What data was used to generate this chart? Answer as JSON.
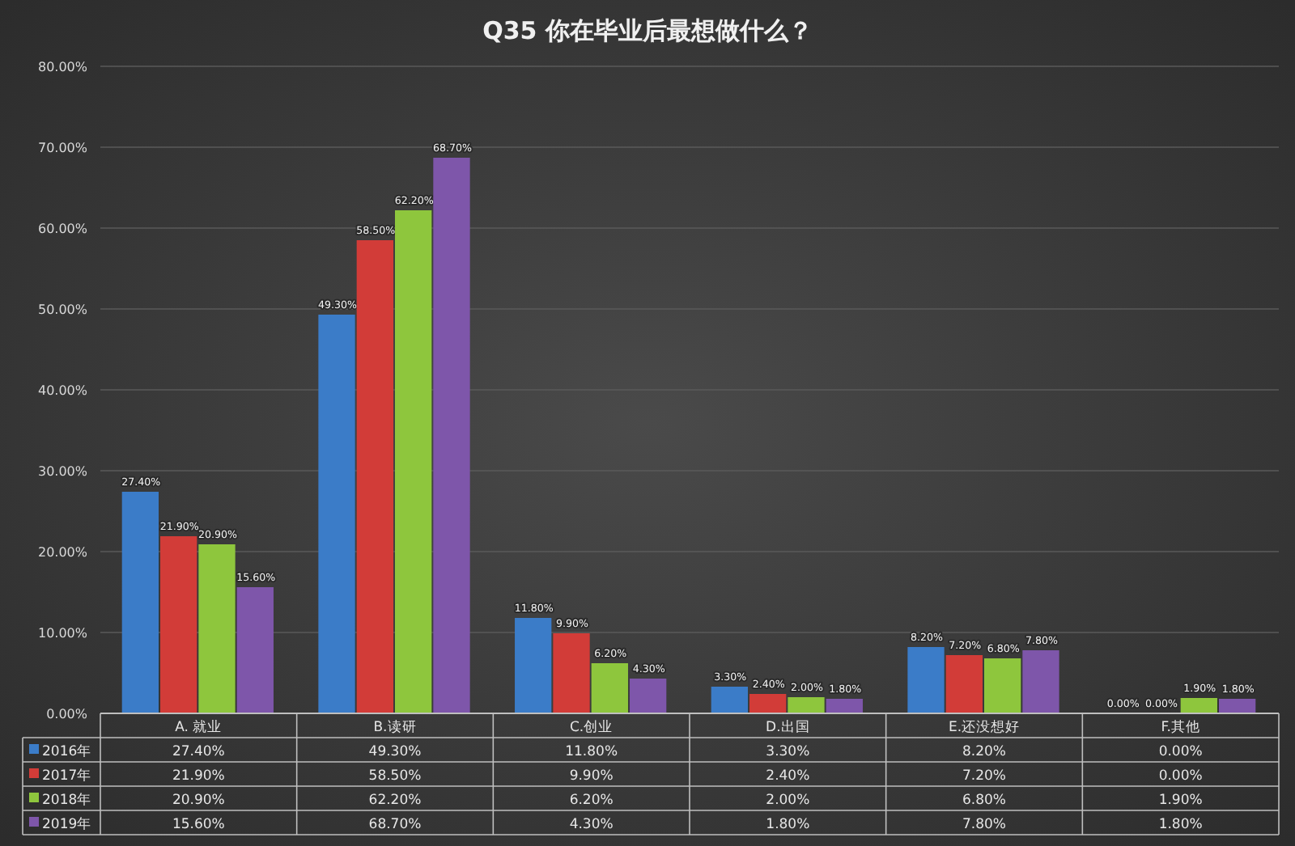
{
  "chart_data": {
    "type": "bar",
    "title": "Q35 你在毕业后最想做什么？",
    "categories": [
      "A. 就业",
      "B.读研",
      "C.创业",
      "D.出国",
      "E.还没想好",
      "F.其他"
    ],
    "series": [
      {
        "name": "2016年",
        "color": "#3b7cc8",
        "values": [
          27.4,
          49.3,
          11.8,
          3.3,
          8.2,
          0
        ],
        "value_labels": [
          "27.40%",
          "49.30%",
          "11.80%",
          "3.30%",
          "8.20%",
          "0.00%"
        ]
      },
      {
        "name": "2017年",
        "color": "#d23c38",
        "values": [
          21.9,
          58.5,
          9.9,
          2.4,
          7.2,
          0
        ],
        "value_labels": [
          "21.90%",
          "58.50%",
          "9.90%",
          "2.40%",
          "7.20%",
          "0.00%"
        ]
      },
      {
        "name": "2018年",
        "color": "#8ec63d",
        "values": [
          20.9,
          62.2,
          6.2,
          2,
          6.8,
          1.9
        ],
        "value_labels": [
          "20.90%",
          "62.20%",
          "6.20%",
          "2.00%",
          "6.80%",
          "1.90%"
        ]
      },
      {
        "name": "2019年",
        "color": "#7e56aa",
        "values": [
          15.6,
          68.7,
          4.3,
          1.8,
          7.8,
          1.8
        ],
        "value_labels": [
          "15.60%",
          "68.70%",
          "4.30%",
          "1.80%",
          "7.80%",
          "1.80%"
        ]
      }
    ],
    "ylim": [
      0,
      80
    ],
    "yticks": [
      {
        "value": 0,
        "label": "0.00%"
      },
      {
        "value": 10,
        "label": "10.00%"
      },
      {
        "value": 20,
        "label": "20.00%"
      },
      {
        "value": 30,
        "label": "30.00%"
      },
      {
        "value": 40,
        "label": "40.00%"
      },
      {
        "value": 50,
        "label": "50.00%"
      },
      {
        "value": 60,
        "label": "60.00%"
      },
      {
        "value": 70,
        "label": "70.00%"
      },
      {
        "value": 80,
        "label": "80.00%"
      }
    ],
    "grid": "y",
    "legend": "bottom"
  }
}
